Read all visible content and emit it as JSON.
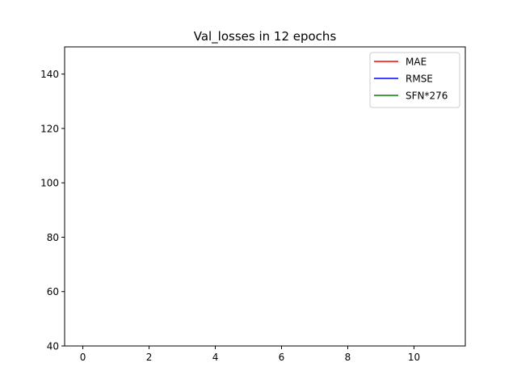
{
  "chart_data": {
    "type": "line",
    "title": "Val_losses in 12 epochs",
    "xlabel": "",
    "ylabel": "",
    "xlim": [
      -0.55,
      11.55
    ],
    "ylim": [
      40,
      150
    ],
    "xticks": [
      0,
      2,
      4,
      6,
      8,
      10
    ],
    "yticks": [
      40,
      60,
      80,
      100,
      120,
      140
    ],
    "grid": false,
    "legend_position": "top-right",
    "series": [
      {
        "name": "MAE",
        "color": "#ff0000",
        "x": [],
        "y": []
      },
      {
        "name": "RMSE",
        "color": "#0000ff",
        "x": [],
        "y": []
      },
      {
        "name": "SFN*276",
        "color": "#008000",
        "x": [],
        "y": []
      }
    ]
  }
}
